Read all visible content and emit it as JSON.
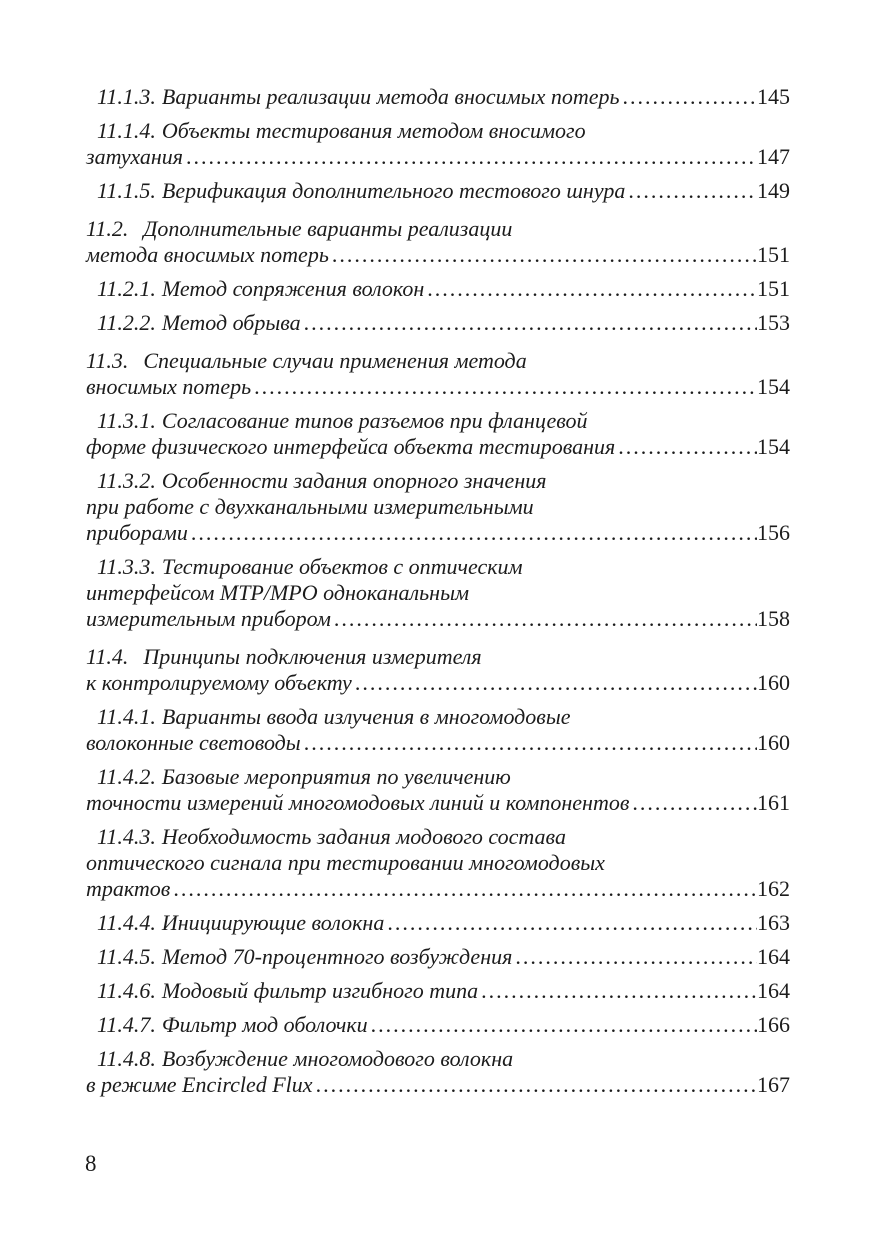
{
  "page": {
    "background_color": "#ffffff",
    "text_color": "#1c1c1c",
    "folio": "8"
  },
  "toc": {
    "entries": [
      {
        "level": "sub",
        "num": "11.1.3.",
        "lines": [
          "Варианты реализации метода вносимых потерь"
        ],
        "page": "145"
      },
      {
        "level": "sub",
        "num": "11.1.4.",
        "lines": [
          "Объекты тестирования методом вносимого",
          "затухания"
        ],
        "page": "147"
      },
      {
        "level": "sub",
        "num": "11.1.5.",
        "lines": [
          "Верификация дополнительного тестового шнура"
        ],
        "page": "149"
      },
      {
        "level": "section",
        "num": "11.2.",
        "lines": [
          "Дополнительные варианты реализации",
          "метода вносимых потерь"
        ],
        "page": "151"
      },
      {
        "level": "sub",
        "num": "11.2.1.",
        "lines": [
          "Метод сопряжения волокон"
        ],
        "page": "151"
      },
      {
        "level": "sub",
        "num": "11.2.2.",
        "lines": [
          "Метод обрыва"
        ],
        "page": "153"
      },
      {
        "level": "section",
        "num": "11.3.",
        "lines": [
          "Специальные случаи применения метода",
          "вносимых потерь"
        ],
        "page": "154"
      },
      {
        "level": "sub",
        "num": "11.3.1.",
        "lines": [
          "Согласование типов разъемов при фланцевой",
          "форме физического интерфейса объекта тестирования"
        ],
        "page": "154"
      },
      {
        "level": "sub",
        "num": "11.3.2.",
        "lines": [
          "Особенности задания опорного значения",
          "при работе с двухканальными измерительными",
          "приборами"
        ],
        "page": "156"
      },
      {
        "level": "sub",
        "num": "11.3.3.",
        "lines": [
          "Тестирование объектов с оптическим",
          "интерфейсом MTP/MPO одноканальным",
          "измерительным прибором"
        ],
        "page": "158"
      },
      {
        "level": "section",
        "num": "11.4.",
        "lines": [
          "Принципы подключения измерителя",
          "к контролируемому объекту"
        ],
        "page": "160"
      },
      {
        "level": "sub",
        "num": "11.4.1.",
        "lines": [
          "Варианты ввода излучения в многомодовые",
          "волоконные световоды"
        ],
        "page": "160"
      },
      {
        "level": "sub",
        "num": "11.4.2.",
        "lines": [
          "Базовые мероприятия по увеличению",
          "точности измерений многомодовых линий и компонентов"
        ],
        "page": "161"
      },
      {
        "level": "sub",
        "num": "11.4.3.",
        "lines": [
          "Необходимость задания модового состава",
          "оптического сигнала при тестировании многомодовых",
          "трактов"
        ],
        "page": "162"
      },
      {
        "level": "sub",
        "num": "11.4.4.",
        "lines": [
          "Инициирующие волокна"
        ],
        "page": "163"
      },
      {
        "level": "sub",
        "num": "11.4.5.",
        "lines": [
          "Метод 70-процентного возбуждения"
        ],
        "page": "164"
      },
      {
        "level": "sub",
        "num": "11.4.6.",
        "lines": [
          "Модовый фильтр изгибного типа"
        ],
        "page": "164"
      },
      {
        "level": "sub",
        "num": "11.4.7.",
        "lines": [
          "Фильтр мод оболочки"
        ],
        "page": "166"
      },
      {
        "level": "sub",
        "num": "11.4.8.",
        "lines": [
          "Возбуждение многомодового волокна",
          "в режиме Encircled Flux"
        ],
        "page": "167"
      }
    ]
  }
}
